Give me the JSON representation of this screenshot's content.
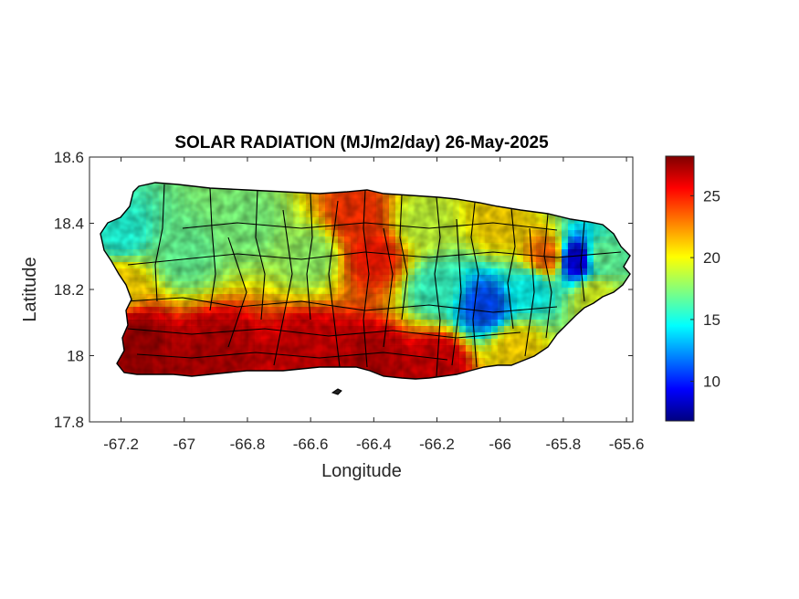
{
  "chart_data": {
    "type": "heatmap",
    "title": "SOLAR RADIATION (MJ/m2/day) 26-May-2025",
    "xlabel": "Longitude",
    "ylabel": "Latitude",
    "xlim": [
      -67.3,
      -65.58
    ],
    "ylim": [
      17.8,
      18.6
    ],
    "xticks": [
      "-67.2",
      "-67",
      "-66.8",
      "-66.6",
      "-66.4",
      "-66.2",
      "-66",
      "-65.8",
      "-65.6"
    ],
    "yticks": [
      "17.8",
      "18",
      "18.2",
      "18.4",
      "18.6"
    ],
    "xtick_values": [
      -67.2,
      -67.0,
      -66.8,
      -66.6,
      -66.4,
      -66.2,
      -66.0,
      -65.8,
      -65.6
    ],
    "ytick_values": [
      17.8,
      18.0,
      18.2,
      18.4,
      18.6
    ],
    "colormap": "jet",
    "colorbar": {
      "min": 6.8,
      "max": 28.2,
      "tick_values": [
        10,
        15,
        20,
        25
      ],
      "tick_labels": [
        "10",
        "15",
        "20",
        "25"
      ]
    },
    "region_value_estimates": [
      {
        "lon": -67.15,
        "lat": 18.05,
        "value": 27.5
      },
      {
        "lon": -66.9,
        "lat": 18.02,
        "value": 27.0
      },
      {
        "lon": -66.6,
        "lat": 18.02,
        "value": 26.5
      },
      {
        "lon": -66.4,
        "lat": 17.98,
        "value": 27.0
      },
      {
        "lon": -66.2,
        "lat": 17.98,
        "value": 26.5
      },
      {
        "lon": -65.95,
        "lat": 18.02,
        "value": 21.0
      },
      {
        "lon": -67.2,
        "lat": 18.22,
        "value": 21.0
      },
      {
        "lon": -67.2,
        "lat": 18.36,
        "value": 15.5
      },
      {
        "lon": -67.0,
        "lat": 18.3,
        "value": 17.0
      },
      {
        "lon": -66.8,
        "lat": 18.4,
        "value": 17.5
      },
      {
        "lon": -66.6,
        "lat": 18.3,
        "value": 18.0
      },
      {
        "lon": -66.45,
        "lat": 18.42,
        "value": 24.5
      },
      {
        "lon": -66.4,
        "lat": 18.3,
        "value": 25.0
      },
      {
        "lon": -66.25,
        "lat": 18.4,
        "value": 19.0
      },
      {
        "lon": -66.2,
        "lat": 18.2,
        "value": 16.0
      },
      {
        "lon": -66.05,
        "lat": 18.15,
        "value": 11.0
      },
      {
        "lon": -65.9,
        "lat": 18.2,
        "value": 15.0
      },
      {
        "lon": -66.0,
        "lat": 18.4,
        "value": 21.0
      },
      {
        "lon": -65.85,
        "lat": 18.3,
        "value": 23.5
      },
      {
        "lon": -65.76,
        "lat": 18.29,
        "value": 8.5
      },
      {
        "lon": -65.68,
        "lat": 18.3,
        "value": 17.0
      },
      {
        "lon": -65.7,
        "lat": 18.18,
        "value": 19.5
      }
    ]
  }
}
